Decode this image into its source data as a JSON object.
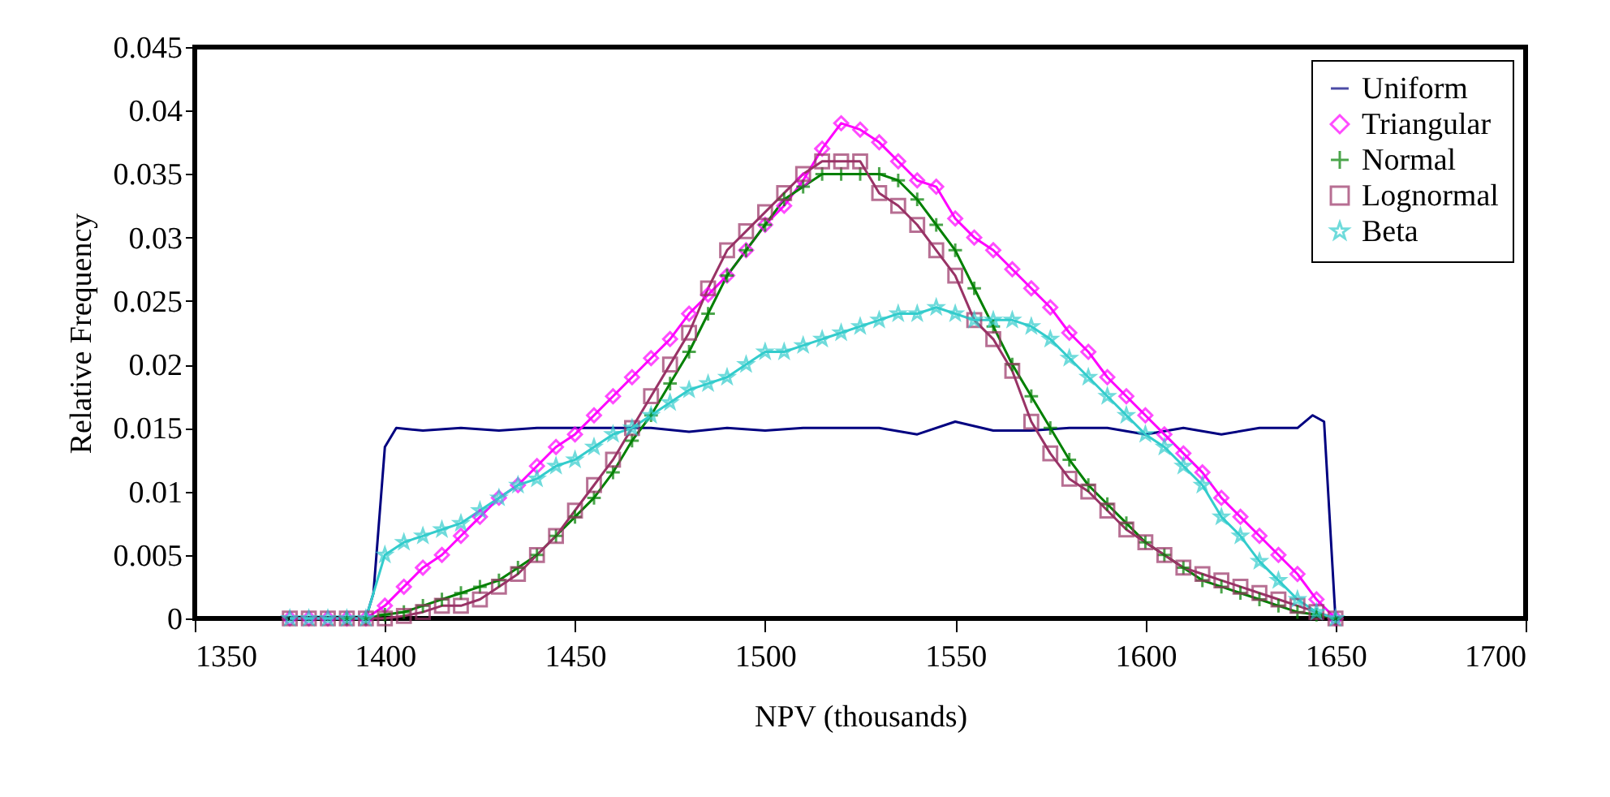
{
  "chart_data": {
    "type": "line",
    "xlabel": "NPV (thousands)",
    "ylabel": "Relative Frequency",
    "x": [
      1375,
      1380,
      1385,
      1390,
      1395,
      1400,
      1405,
      1410,
      1415,
      1420,
      1425,
      1430,
      1435,
      1440,
      1445,
      1450,
      1455,
      1460,
      1465,
      1470,
      1475,
      1480,
      1485,
      1490,
      1495,
      1500,
      1505,
      1510,
      1515,
      1520,
      1525,
      1530,
      1535,
      1540,
      1545,
      1550,
      1555,
      1560,
      1565,
      1570,
      1575,
      1580,
      1585,
      1590,
      1595,
      1600,
      1605,
      1610,
      1615,
      1620,
      1625,
      1630,
      1635,
      1640,
      1645,
      1650
    ],
    "series": [
      {
        "name": "Uniform",
        "color": "#000080",
        "marker": "none",
        "x": [
          1375,
          1395,
          1397,
          1400,
          1403,
          1410,
          1420,
          1430,
          1440,
          1450,
          1460,
          1470,
          1480,
          1490,
          1500,
          1510,
          1520,
          1530,
          1540,
          1550,
          1560,
          1570,
          1580,
          1590,
          1600,
          1610,
          1620,
          1630,
          1640,
          1644,
          1647,
          1650
        ],
        "values": [
          0,
          0,
          0.002,
          0.0135,
          0.015,
          0.0148,
          0.015,
          0.0148,
          0.015,
          0.015,
          0.015,
          0.015,
          0.0147,
          0.015,
          0.0148,
          0.015,
          0.015,
          0.015,
          0.0145,
          0.0155,
          0.0148,
          0.0148,
          0.015,
          0.015,
          0.0145,
          0.015,
          0.0145,
          0.015,
          0.015,
          0.016,
          0.0155,
          0
        ]
      },
      {
        "name": "Triangular",
        "color": "#ff00ff",
        "marker": "diamond",
        "values": [
          0,
          0,
          0,
          0,
          0,
          0.001,
          0.0025,
          0.004,
          0.005,
          0.0065,
          0.008,
          0.0095,
          0.0105,
          0.012,
          0.0135,
          0.0145,
          0.016,
          0.0175,
          0.019,
          0.0205,
          0.022,
          0.024,
          0.0255,
          0.027,
          0.029,
          0.031,
          0.0325,
          0.0345,
          0.037,
          0.039,
          0.0385,
          0.0375,
          0.036,
          0.0345,
          0.034,
          0.0315,
          0.03,
          0.029,
          0.0275,
          0.026,
          0.0245,
          0.0225,
          0.021,
          0.019,
          0.0175,
          0.016,
          0.0145,
          0.013,
          0.0115,
          0.0095,
          0.008,
          0.0065,
          0.005,
          0.0035,
          0.0015,
          0
        ]
      },
      {
        "name": "Normal",
        "color": "#008000",
        "marker": "cross",
        "values": [
          null,
          null,
          null,
          0,
          0,
          0.0003,
          0.0005,
          0.001,
          0.0015,
          0.002,
          0.0025,
          0.003,
          0.004,
          0.005,
          0.0065,
          0.008,
          0.0095,
          0.0115,
          0.014,
          0.016,
          0.0185,
          0.021,
          0.024,
          0.027,
          0.029,
          0.031,
          0.033,
          0.034,
          0.035,
          0.035,
          0.035,
          0.035,
          0.0345,
          0.033,
          0.031,
          0.029,
          0.026,
          0.023,
          0.02,
          0.0175,
          0.015,
          0.0125,
          0.0105,
          0.009,
          0.0075,
          0.006,
          0.005,
          0.004,
          0.003,
          0.0025,
          0.002,
          0.0015,
          0.001,
          0.0005,
          0.0003,
          0
        ]
      },
      {
        "name": "Lognormal",
        "color": "#993366",
        "marker": "square",
        "values": [
          0,
          0,
          0,
          0,
          0,
          0,
          0.0002,
          0.0005,
          0.001,
          0.001,
          0.0015,
          0.0025,
          0.0035,
          0.005,
          0.0065,
          0.0085,
          0.0105,
          0.0125,
          0.015,
          0.0175,
          0.02,
          0.0225,
          0.026,
          0.029,
          0.0305,
          0.032,
          0.0335,
          0.035,
          0.036,
          0.036,
          0.036,
          0.0335,
          0.0325,
          0.031,
          0.029,
          0.027,
          0.0235,
          0.022,
          0.0195,
          0.0155,
          0.013,
          0.011,
          0.01,
          0.0085,
          0.007,
          0.006,
          0.005,
          0.004,
          0.0035,
          0.003,
          0.0025,
          0.002,
          0.0015,
          0.001,
          0.0005,
          0
        ]
      },
      {
        "name": "Beta",
        "color": "#33cccc",
        "marker": "star",
        "values": [
          0,
          0,
          0,
          0,
          0,
          0.005,
          0.006,
          0.0065,
          0.007,
          0.0075,
          0.0085,
          0.0095,
          0.0105,
          0.011,
          0.012,
          0.0125,
          0.0135,
          0.0145,
          0.015,
          0.016,
          0.017,
          0.018,
          0.0185,
          0.019,
          0.02,
          0.021,
          0.021,
          0.0215,
          0.022,
          0.0225,
          0.023,
          0.0235,
          0.024,
          0.024,
          0.0245,
          0.024,
          0.0235,
          0.0235,
          0.0235,
          0.023,
          0.022,
          0.0205,
          0.019,
          0.0175,
          0.016,
          0.0145,
          0.0135,
          0.012,
          0.0105,
          0.008,
          0.0065,
          0.0045,
          0.003,
          0.0015,
          0.0005,
          0
        ]
      }
    ],
    "xlim": [
      1350,
      1700
    ],
    "xticks": [
      1350,
      1400,
      1450,
      1500,
      1550,
      1600,
      1650,
      1700
    ],
    "ylim": [
      0,
      0.045
    ],
    "yticks": [
      0,
      0.005,
      0.01,
      0.015,
      0.02,
      0.025,
      0.03,
      0.035,
      0.04,
      0.045
    ],
    "grid": false,
    "legend": "top right"
  }
}
